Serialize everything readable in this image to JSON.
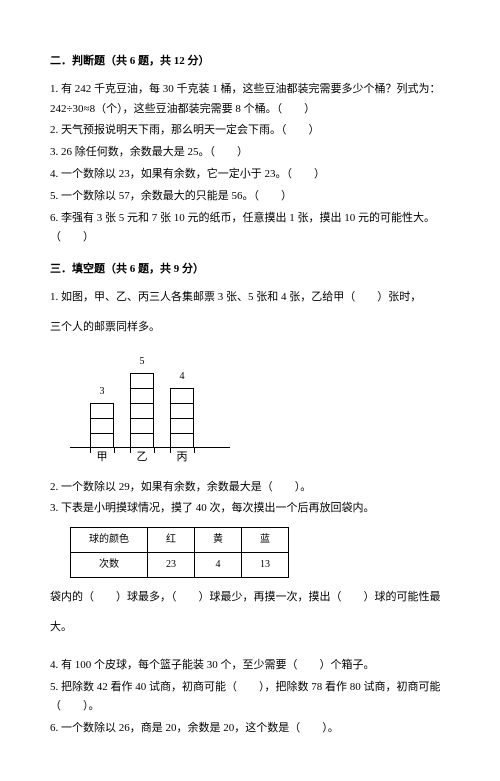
{
  "section2": {
    "title": "二．判断题（共 6 题，共 12 分）",
    "items": [
      "1. 有 242 千克豆油，每 30 千克装 1 桶，这些豆油都装完需要多少个桶？列式为：242÷30≈8（个），这些豆油都装完需要 8 个桶。（　　）",
      "2. 天气预报说明天下雨，那么明天一定会下雨。（　　）",
      "3. 26 除任何数，余数最大是 25。（　　）",
      "4. 一个数除以 23，如果有余数，它一定小于 23。（　　）",
      "5. 一个数除以 57，余数最大的只能是 56。（　　）",
      "6. 李强有 3 张 5 元和 7 张 10 元的纸币，任意摸出 1 张，摸出 10 元的可能性大。（　　）"
    ]
  },
  "section3": {
    "title": "三．填空题（共 6 题，共 9 分）",
    "q1_intro": "1. 如图，甲、乙、丙三人各集邮票 3 张、5 张和 4 张，乙给甲（　　）张时，",
    "q1_cont": "三个人的邮票同样多。",
    "chart": {
      "bars": [
        {
          "label": "甲",
          "value": 3,
          "topLabel": "3"
        },
        {
          "label": "乙",
          "value": 5,
          "topLabel": "5"
        },
        {
          "label": "丙",
          "value": 4,
          "topLabel": "4"
        }
      ],
      "cellHeight": 15,
      "barColor": "#ffffff",
      "borderColor": "#000000"
    },
    "q2": "2. 一个数除以 29，如果有余数，余数最大是（　　）。",
    "q3": "3. 下表是小明摸球情况，摸了 40 次，每次摸出一个后再放回袋内。",
    "table": {
      "header": [
        "球的颜色",
        "红",
        "黄",
        "蓝"
      ],
      "row": [
        "次数",
        "23",
        "4",
        "13"
      ]
    },
    "q3_after": "袋内的（　　）球最多，（　　）球最少，再摸一次，摸出（　　）球的可能性最",
    "q3_after2": "大。",
    "q4": "4. 有 100 个皮球，每个篮子能装 30 个，至少需要（　　）个箱子。",
    "q5": "5. 把除数 42 看作 40 试商，初商可能（　　），把除数 78 看作 80 试商，初商可能（　　）。",
    "q6": "6. 一个数除以 26，商是 20，余数是 20，这个数是（　　）。"
  }
}
